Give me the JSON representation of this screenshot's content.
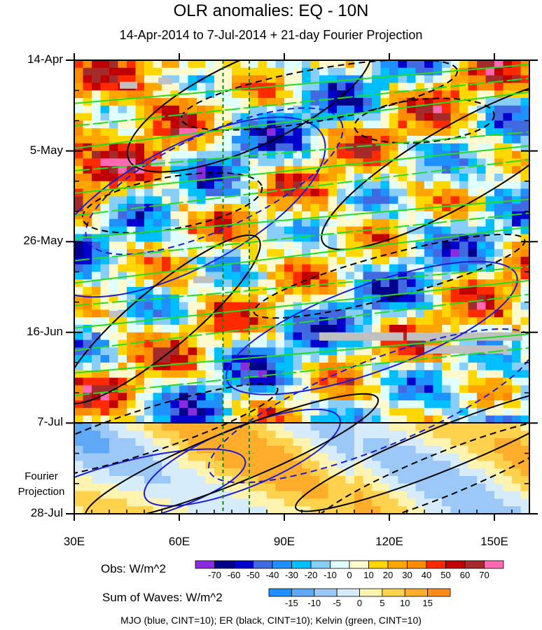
{
  "title": "OLR anomalies: EQ - 10N",
  "subtitle": "14-Apr-2014 to 7-Jul-2014 + 21-day Fourier Projection",
  "projection_label_line1": "Fourier",
  "projection_label_line2": "Projection",
  "waves_note": "MJO (blue, CINT=10); ER (black, CINT=10); Kelvin (green, CINT=10)",
  "colors": {
    "mjo": "#1c1cd6",
    "er": "#000000",
    "kelvin": "#22dd22",
    "reference_lines": "#118811"
  },
  "chart_data": {
    "type": "heatmap",
    "x_axis": {
      "range": [
        "30E",
        "160E"
      ],
      "ticks": [
        "30E",
        "60E",
        "90E",
        "120E",
        "150E"
      ],
      "tick_values": [
        30,
        60,
        90,
        120,
        150
      ],
      "min": 30,
      "max": 160
    },
    "y_axis": {
      "ticks": [
        "14-Apr",
        "5-May",
        "26-May",
        "16-Jun",
        "7-Jul",
        "28-Jul"
      ],
      "tick_day_index": [
        0,
        21,
        42,
        63,
        84,
        105
      ],
      "observed_end": "7-Jul",
      "reversed_time_downward": true
    },
    "reference_longitudes": [
      72.5,
      80
    ],
    "obs_colorbar": {
      "title": "Obs: W/m^2",
      "levels": [
        -70,
        -60,
        -50,
        -40,
        -30,
        -20,
        -10,
        0,
        10,
        20,
        30,
        40,
        50,
        60,
        70
      ],
      "colors": [
        "#8a2be2",
        "#00008b",
        "#0000cd",
        "#4169e1",
        "#1e90ff",
        "#00bfff",
        "#87cefa",
        "#e0ffff",
        "#fffacd",
        "#ffd700",
        "#ffa500",
        "#ff8c00",
        "#ff2a00",
        "#c00000",
        "#a52a2a",
        "#ff69b4"
      ]
    },
    "waves_colorbar": {
      "title": "Sum of Waves: W/m^2",
      "levels": [
        -15,
        -10,
        -5,
        0,
        5,
        10,
        15
      ],
      "colors": [
        "#1e90ff",
        "#5fa8f5",
        "#9cc8f7",
        "#d6ecfb",
        "#fff3b0",
        "#ffd24d",
        "#ffad2a",
        "#ff8c1a"
      ]
    },
    "overlays": [
      {
        "name": "MJO",
        "color": "blue",
        "cint": 10
      },
      {
        "name": "ER",
        "color": "black",
        "cint": 10
      },
      {
        "name": "Kelvin",
        "color": "green",
        "cint": 10
      }
    ]
  }
}
